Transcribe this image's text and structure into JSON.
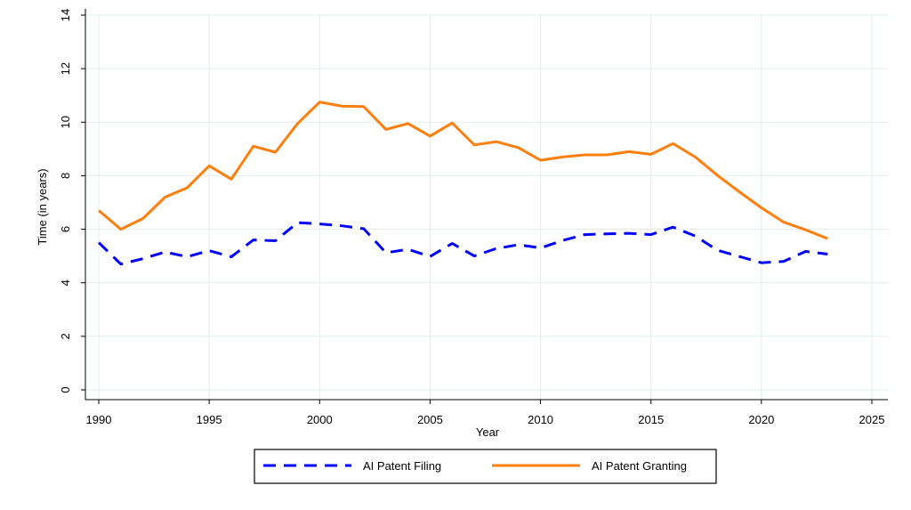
{
  "chart_data": {
    "type": "line",
    "xlabel": "Year",
    "ylabel": "Time (in years)",
    "xlim": [
      1990,
      2025
    ],
    "ylim": [
      0,
      14
    ],
    "xticks": [
      1990,
      1995,
      2000,
      2005,
      2010,
      2015,
      2020,
      2025
    ],
    "yticks": [
      0,
      2,
      4,
      6,
      8,
      10,
      12,
      14
    ],
    "grid": true,
    "legend_position": "bottom",
    "x": [
      1990,
      1991,
      1992,
      1993,
      1994,
      1995,
      1996,
      1997,
      1998,
      1999,
      2000,
      2001,
      2002,
      2003,
      2004,
      2005,
      2006,
      2007,
      2008,
      2009,
      2010,
      2011,
      2012,
      2013,
      2014,
      2015,
      2016,
      2017,
      2018,
      2019,
      2020,
      2021,
      2022,
      2023
    ],
    "series": [
      {
        "name": "AI Patent Filing",
        "color": "#0000ff",
        "dash": true,
        "values": [
          5.5,
          4.7,
          4.9,
          5.15,
          4.97,
          5.2,
          4.97,
          5.6,
          5.57,
          6.25,
          6.2,
          6.13,
          6.02,
          5.12,
          5.25,
          4.98,
          5.47,
          5.0,
          5.28,
          5.42,
          5.3,
          5.58,
          5.8,
          5.83,
          5.85,
          5.8,
          6.08,
          5.75,
          5.22,
          4.98,
          4.75,
          4.8,
          5.17,
          5.07
        ]
      },
      {
        "name": "AI Patent Granting",
        "color": "#ff7f0e",
        "dash": false,
        "values": [
          6.7,
          6.0,
          6.4,
          7.2,
          7.55,
          8.37,
          7.87,
          9.1,
          8.88,
          9.95,
          10.75,
          10.6,
          10.58,
          9.73,
          9.95,
          9.48,
          9.97,
          9.15,
          9.27,
          9.05,
          8.58,
          8.7,
          8.78,
          8.78,
          8.9,
          8.8,
          9.2,
          8.7,
          8.02,
          7.4,
          6.8,
          6.27,
          5.98,
          5.65
        ]
      }
    ]
  }
}
